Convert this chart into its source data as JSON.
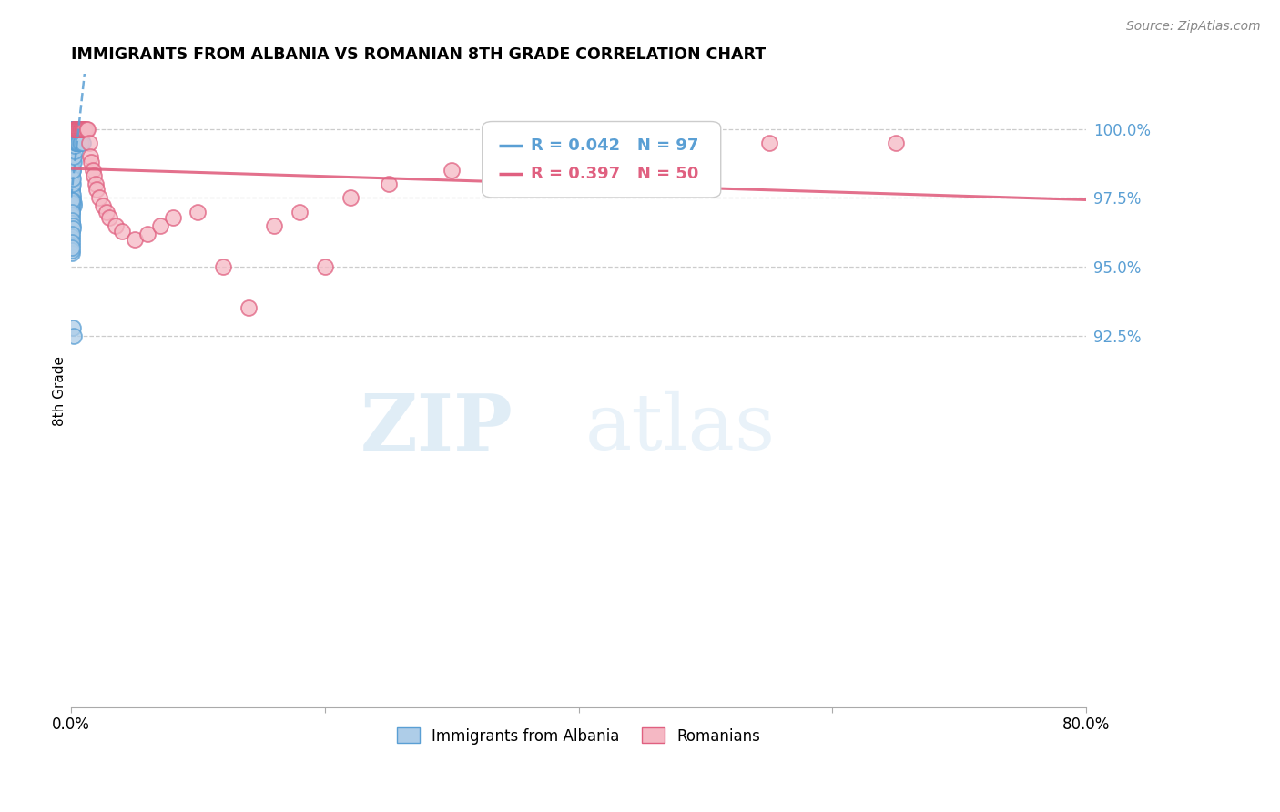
{
  "title": "IMMIGRANTS FROM ALBANIA VS ROMANIAN 8TH GRADE CORRELATION CHART",
  "source": "Source: ZipAtlas.com",
  "ylabel": "8th Grade",
  "xmin": 0.0,
  "xmax": 80.0,
  "ymin": 79.0,
  "ymax": 102.0,
  "y_ticks": [
    92.5,
    95.0,
    97.5,
    100.0
  ],
  "albania_color_face": "#aecde8",
  "albania_color_edge": "#5a9fd4",
  "romanian_color_face": "#f5b8c4",
  "romanian_color_edge": "#e06080",
  "albania_R": 0.042,
  "albania_N": 97,
  "romanian_R": 0.397,
  "romanian_N": 50,
  "legend_label_albania": "Immigrants from Albania",
  "legend_label_romanian": "Romanians",
  "watermark_zip": "ZIP",
  "watermark_atlas": "atlas",
  "albania_x": [
    0.05,
    0.08,
    0.1,
    0.12,
    0.15,
    0.18,
    0.2,
    0.22,
    0.25,
    0.28,
    0.3,
    0.33,
    0.35,
    0.38,
    0.4,
    0.05,
    0.08,
    0.1,
    0.12,
    0.15,
    0.18,
    0.2,
    0.22,
    0.25,
    0.05,
    0.08,
    0.1,
    0.12,
    0.15,
    0.05,
    0.08,
    0.1,
    0.05,
    0.08,
    0.1,
    0.05,
    0.06,
    0.07,
    0.08,
    0.09,
    0.05,
    0.06,
    0.07,
    0.05,
    0.06,
    0.05,
    0.04,
    0.06,
    0.07,
    0.08,
    0.1,
    0.12,
    0.15,
    0.18,
    0.2,
    0.04,
    0.05,
    0.06,
    0.07,
    0.08,
    0.04,
    0.05,
    0.06,
    0.04,
    0.05,
    0.04,
    0.05,
    0.06,
    0.07,
    0.08,
    0.1,
    0.12,
    0.04,
    0.05,
    0.06,
    0.04,
    0.05,
    0.04,
    0.05,
    0.06,
    0.1,
    0.12,
    0.15,
    0.18,
    0.2,
    0.25,
    0.3,
    0.35,
    0.4,
    0.45,
    0.5,
    0.6,
    0.7,
    0.8,
    0.9,
    0.1,
    0.2
  ],
  "albania_y": [
    100.0,
    100.0,
    100.0,
    100.0,
    100.0,
    100.0,
    100.0,
    100.0,
    100.0,
    100.0,
    100.0,
    100.0,
    100.0,
    100.0,
    100.0,
    99.5,
    99.5,
    99.5,
    99.5,
    99.5,
    99.5,
    99.5,
    99.5,
    99.5,
    99.0,
    99.0,
    99.0,
    99.0,
    99.0,
    98.8,
    98.8,
    98.8,
    98.5,
    98.5,
    98.5,
    98.2,
    98.3,
    98.4,
    98.5,
    98.6,
    98.0,
    98.1,
    98.2,
    97.8,
    97.9,
    97.5,
    97.6,
    97.7,
    97.8,
    97.9,
    97.5,
    97.6,
    97.4,
    97.3,
    97.2,
    97.0,
    97.1,
    97.2,
    97.3,
    97.4,
    96.8,
    96.9,
    97.0,
    96.5,
    96.6,
    96.3,
    96.4,
    96.5,
    96.6,
    96.7,
    96.5,
    96.4,
    96.0,
    96.1,
    96.2,
    95.8,
    95.9,
    95.5,
    95.6,
    95.7,
    98.0,
    98.2,
    98.5,
    98.8,
    99.0,
    99.2,
    99.4,
    99.5,
    99.5,
    99.5,
    99.5,
    99.5,
    99.5,
    99.5,
    99.5,
    92.8,
    92.5
  ],
  "romanian_x": [
    0.2,
    0.25,
    0.3,
    0.35,
    0.4,
    0.45,
    0.5,
    0.55,
    0.6,
    0.65,
    0.7,
    0.75,
    0.8,
    0.85,
    0.9,
    0.95,
    1.0,
    1.1,
    1.2,
    1.3,
    1.4,
    1.5,
    1.6,
    1.7,
    1.8,
    1.9,
    2.0,
    2.2,
    2.5,
    2.8,
    3.0,
    3.5,
    4.0,
    5.0,
    6.0,
    7.0,
    8.0,
    10.0,
    12.0,
    14.0,
    16.0,
    18.0,
    20.0,
    22.0,
    25.0,
    30.0,
    35.0,
    45.0,
    55.0,
    65.0
  ],
  "romanian_y": [
    100.0,
    100.0,
    100.0,
    100.0,
    100.0,
    100.0,
    100.0,
    100.0,
    100.0,
    100.0,
    100.0,
    100.0,
    100.0,
    100.0,
    100.0,
    100.0,
    100.0,
    100.0,
    100.0,
    100.0,
    99.5,
    99.0,
    98.8,
    98.5,
    98.3,
    98.0,
    97.8,
    97.5,
    97.2,
    97.0,
    96.8,
    96.5,
    96.3,
    96.0,
    96.2,
    96.5,
    96.8,
    97.0,
    95.0,
    93.5,
    96.5,
    97.0,
    95.0,
    97.5,
    98.0,
    98.5,
    99.0,
    99.5,
    99.5,
    99.5
  ]
}
